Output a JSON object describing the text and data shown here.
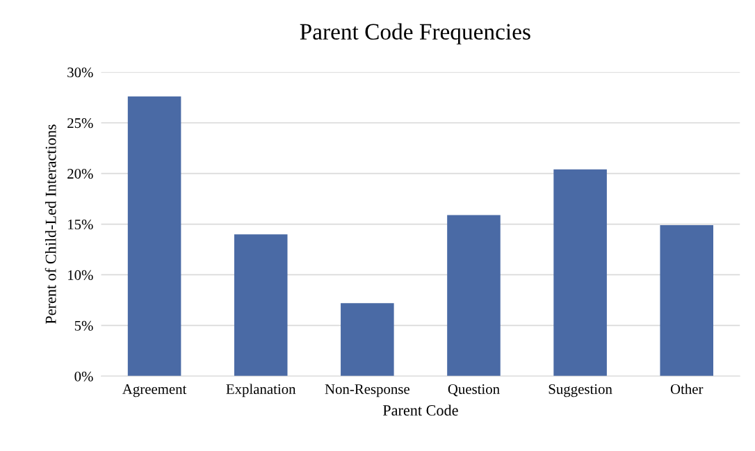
{
  "chart_data": {
    "type": "bar",
    "title": "Parent Code Frequencies",
    "xlabel": "Parent Code",
    "ylabel": "Perent of Child-Led Interactions",
    "categories": [
      "Agreement",
      "Explanation",
      "Non-Response",
      "Question",
      "Suggestion",
      "Other"
    ],
    "values": [
      27.6,
      14.0,
      7.2,
      15.9,
      20.4,
      14.9
    ],
    "color": "#4a6aa5",
    "ylim": [
      0,
      30
    ],
    "yticks": [
      {
        "value": 0,
        "label": "0%"
      },
      {
        "value": 5,
        "label": "5%"
      },
      {
        "value": 10,
        "label": "10%"
      },
      {
        "value": 15,
        "label": "15%"
      },
      {
        "value": 20,
        "label": "20%"
      },
      {
        "value": 25,
        "label": "25%"
      },
      {
        "value": 30,
        "label": "30%"
      }
    ],
    "grid": "y"
  }
}
